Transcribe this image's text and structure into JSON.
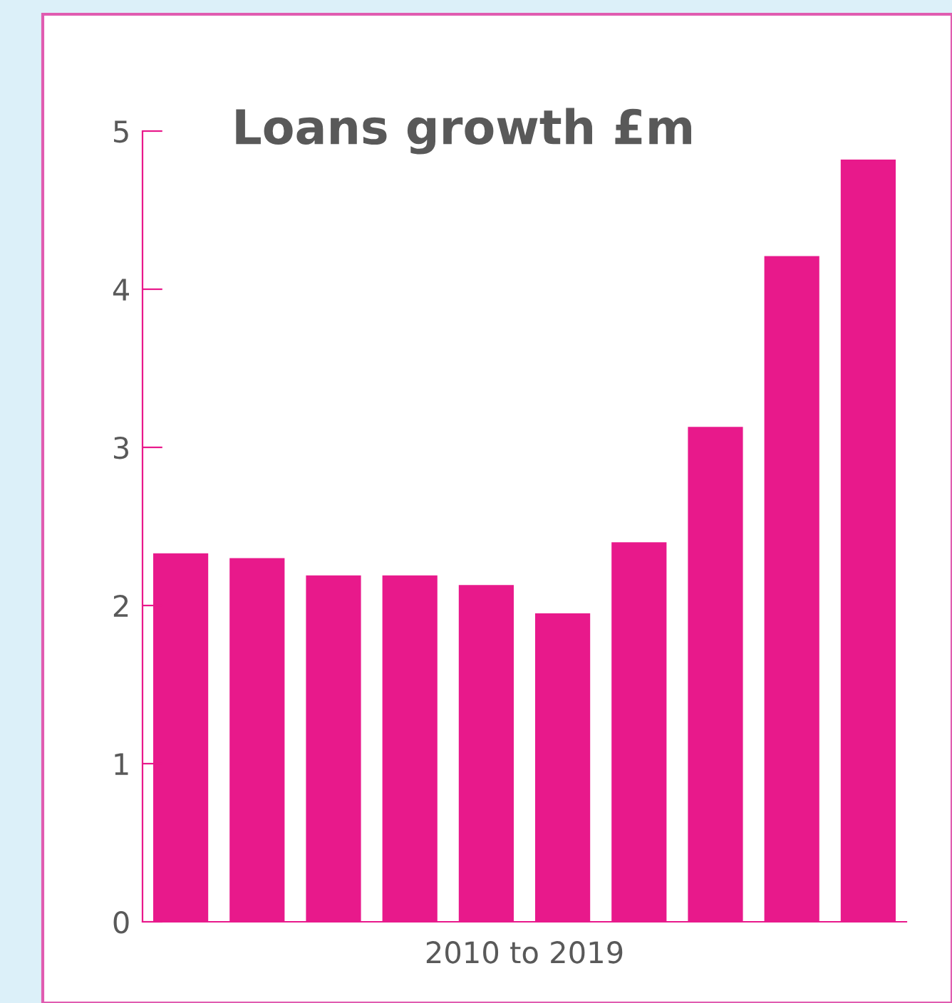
{
  "chart_data": {
    "type": "bar",
    "title": "Loans growth £m",
    "xlabel": "2010 to 2019",
    "categories": [
      null,
      null,
      null,
      null,
      null,
      null,
      null,
      null,
      null,
      null
    ],
    "values": [
      2.33,
      2.3,
      2.19,
      2.19,
      2.13,
      1.95,
      2.4,
      3.13,
      4.21,
      4.82
    ],
    "color": "#e8198b",
    "ylim": [
      0,
      5
    ],
    "yticks": [
      0,
      1,
      2,
      3,
      4,
      5
    ],
    "grid": false,
    "legend": false
  }
}
